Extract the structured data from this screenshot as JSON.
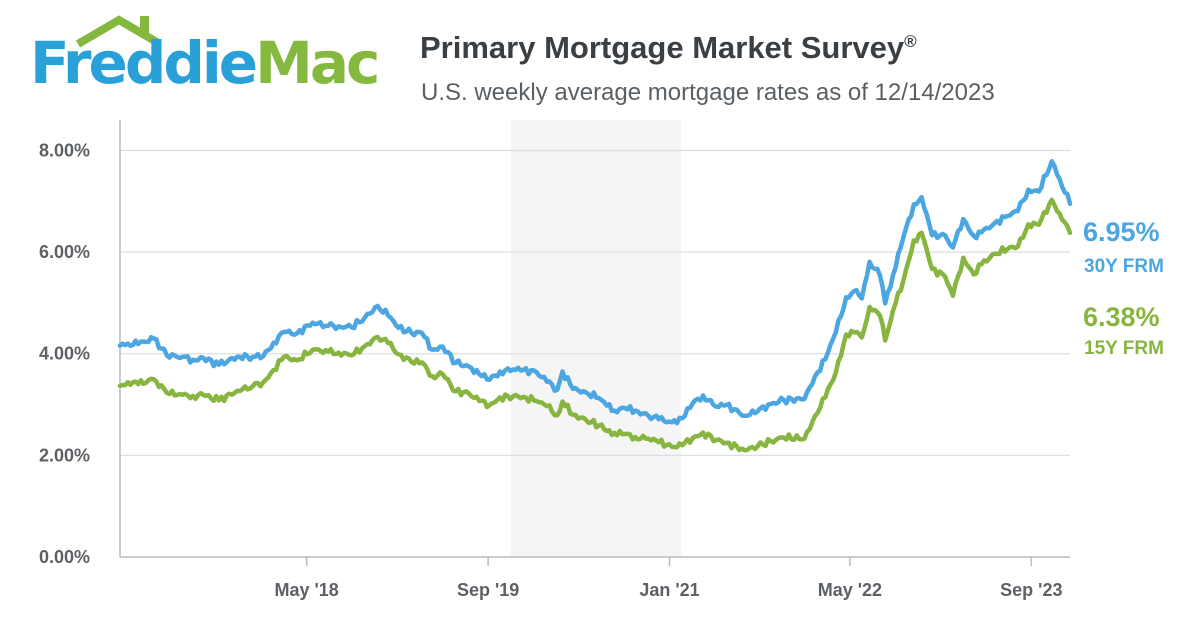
{
  "header": {
    "logo": {
      "name": "freddie-mac-logo",
      "text_part1": "Freddie",
      "text_part2": "Mac"
    },
    "title": "Primary Mortgage Market Survey",
    "title_mark": "®",
    "subtitle": "U.S. weekly average mortgage rates as of 12/14/2023"
  },
  "colors": {
    "series_30y": "#4ba6e1",
    "series_15y": "#87b540",
    "grid": "#dcdfe2",
    "axis": "#b8bcc0",
    "shade": "#f5f5f6"
  },
  "chart_data": {
    "type": "line",
    "title": "Primary Mortgage Market Survey",
    "subtitle": "U.S. weekly average mortgage rates as of 12/14/2023",
    "xlabel": "",
    "ylabel": "",
    "x_axis": {
      "type": "date",
      "range": [
        "2016-12-15",
        "2023-12-14"
      ],
      "tick_labels": [
        "May '18",
        "Sep '19",
        "Jan '21",
        "May '22",
        "Sep '23"
      ],
      "tick_dates": [
        "2018-05-01",
        "2019-09-01",
        "2021-01-01",
        "2022-05-01",
        "2023-09-01"
      ]
    },
    "y_axis": {
      "range": [
        0,
        8.6
      ],
      "ticks": [
        0,
        2,
        4,
        6,
        8
      ],
      "tick_labels": [
        "0.00%",
        "2.00%",
        "4.00%",
        "6.00%",
        "8.00%"
      ]
    },
    "grid": true,
    "legend": "right",
    "series": [
      {
        "name": "30Y FRM",
        "end_value_label": "6.95%",
        "end_label": "30Y FRM",
        "points": [
          [
            "2016-12-15",
            4.16
          ],
          [
            "2017-01-05",
            4.2
          ],
          [
            "2017-02-02",
            4.19
          ],
          [
            "2017-03-16",
            4.3
          ],
          [
            "2017-04-20",
            3.97
          ],
          [
            "2017-06-01",
            3.94
          ],
          [
            "2017-06-29",
            3.88
          ],
          [
            "2017-07-27",
            3.92
          ],
          [
            "2017-09-07",
            3.78
          ],
          [
            "2017-10-26",
            3.94
          ],
          [
            "2017-12-07",
            3.94
          ],
          [
            "2018-01-04",
            3.95
          ],
          [
            "2018-02-01",
            4.22
          ],
          [
            "2018-03-01",
            4.43
          ],
          [
            "2018-04-05",
            4.4
          ],
          [
            "2018-05-17",
            4.61
          ],
          [
            "2018-06-28",
            4.55
          ],
          [
            "2018-07-26",
            4.54
          ],
          [
            "2018-08-30",
            4.52
          ],
          [
            "2018-10-04",
            4.71
          ],
          [
            "2018-11-08",
            4.94
          ],
          [
            "2018-12-06",
            4.75
          ],
          [
            "2019-01-03",
            4.51
          ],
          [
            "2019-02-07",
            4.41
          ],
          [
            "2019-03-07",
            4.41
          ],
          [
            "2019-04-04",
            4.08
          ],
          [
            "2019-05-02",
            4.14
          ],
          [
            "2019-06-06",
            3.82
          ],
          [
            "2019-07-11",
            3.75
          ],
          [
            "2019-08-08",
            3.6
          ],
          [
            "2019-09-05",
            3.49
          ],
          [
            "2019-10-03",
            3.65
          ],
          [
            "2019-11-07",
            3.69
          ],
          [
            "2019-12-05",
            3.68
          ],
          [
            "2020-01-09",
            3.64
          ],
          [
            "2020-02-06",
            3.45
          ],
          [
            "2020-03-05",
            3.29
          ],
          [
            "2020-03-19",
            3.65
          ],
          [
            "2020-04-16",
            3.31
          ],
          [
            "2020-05-21",
            3.24
          ],
          [
            "2020-06-25",
            3.13
          ],
          [
            "2020-07-16",
            2.98
          ],
          [
            "2020-08-06",
            2.88
          ],
          [
            "2020-09-03",
            2.93
          ],
          [
            "2020-10-01",
            2.88
          ],
          [
            "2020-11-05",
            2.78
          ],
          [
            "2020-12-03",
            2.71
          ],
          [
            "2021-01-07",
            2.65
          ],
          [
            "2021-02-04",
            2.73
          ],
          [
            "2021-03-04",
            3.02
          ],
          [
            "2021-04-01",
            3.18
          ],
          [
            "2021-05-06",
            2.96
          ],
          [
            "2021-06-03",
            2.99
          ],
          [
            "2021-07-22",
            2.78
          ],
          [
            "2021-08-26",
            2.87
          ],
          [
            "2021-09-30",
            3.01
          ],
          [
            "2021-11-04",
            3.09
          ],
          [
            "2021-12-30",
            3.11
          ],
          [
            "2022-01-27",
            3.55
          ],
          [
            "2022-02-24",
            3.89
          ],
          [
            "2022-03-24",
            4.42
          ],
          [
            "2022-04-21",
            5.11
          ],
          [
            "2022-05-19",
            5.25
          ],
          [
            "2022-06-02",
            5.09
          ],
          [
            "2022-06-23",
            5.81
          ],
          [
            "2022-07-21",
            5.54
          ],
          [
            "2022-08-04",
            4.99
          ],
          [
            "2022-08-25",
            5.55
          ],
          [
            "2022-09-22",
            6.29
          ],
          [
            "2022-10-20",
            6.94
          ],
          [
            "2022-11-10",
            7.08
          ],
          [
            "2022-12-08",
            6.33
          ],
          [
            "2023-01-12",
            6.33
          ],
          [
            "2023-02-02",
            6.09
          ],
          [
            "2023-03-02",
            6.65
          ],
          [
            "2023-03-30",
            6.32
          ],
          [
            "2023-04-20",
            6.39
          ],
          [
            "2023-05-25",
            6.57
          ],
          [
            "2023-06-29",
            6.71
          ],
          [
            "2023-07-27",
            6.81
          ],
          [
            "2023-08-24",
            7.23
          ],
          [
            "2023-09-21",
            7.19
          ],
          [
            "2023-10-26",
            7.79
          ],
          [
            "2023-11-16",
            7.44
          ],
          [
            "2023-12-14",
            6.95
          ]
        ]
      },
      {
        "name": "15Y FRM",
        "end_value_label": "6.38%",
        "end_label": "15Y FRM",
        "points": [
          [
            "2016-12-15",
            3.37
          ],
          [
            "2017-01-05",
            3.44
          ],
          [
            "2017-02-02",
            3.4
          ],
          [
            "2017-03-16",
            3.5
          ],
          [
            "2017-04-20",
            3.23
          ],
          [
            "2017-06-01",
            3.19
          ],
          [
            "2017-06-29",
            3.17
          ],
          [
            "2017-07-27",
            3.19
          ],
          [
            "2017-09-07",
            3.08
          ],
          [
            "2017-10-26",
            3.27
          ],
          [
            "2017-12-07",
            3.36
          ],
          [
            "2018-01-04",
            3.44
          ],
          [
            "2018-02-01",
            3.68
          ],
          [
            "2018-03-01",
            3.94
          ],
          [
            "2018-04-05",
            3.87
          ],
          [
            "2018-05-17",
            4.08
          ],
          [
            "2018-06-28",
            4.04
          ],
          [
            "2018-07-26",
            4.02
          ],
          [
            "2018-08-30",
            3.97
          ],
          [
            "2018-10-04",
            4.15
          ],
          [
            "2018-11-08",
            4.33
          ],
          [
            "2018-12-06",
            4.21
          ],
          [
            "2019-01-03",
            3.99
          ],
          [
            "2019-02-07",
            3.84
          ],
          [
            "2019-03-07",
            3.83
          ],
          [
            "2019-04-04",
            3.56
          ],
          [
            "2019-05-02",
            3.6
          ],
          [
            "2019-06-06",
            3.26
          ],
          [
            "2019-07-11",
            3.22
          ],
          [
            "2019-08-08",
            3.07
          ],
          [
            "2019-09-05",
            2.99
          ],
          [
            "2019-10-03",
            3.14
          ],
          [
            "2019-11-07",
            3.16
          ],
          [
            "2019-12-05",
            3.15
          ],
          [
            "2020-01-09",
            3.07
          ],
          [
            "2020-02-06",
            2.97
          ],
          [
            "2020-03-05",
            2.79
          ],
          [
            "2020-03-19",
            3.06
          ],
          [
            "2020-04-16",
            2.8
          ],
          [
            "2020-05-21",
            2.7
          ],
          [
            "2020-06-25",
            2.59
          ],
          [
            "2020-07-16",
            2.48
          ],
          [
            "2020-08-06",
            2.44
          ],
          [
            "2020-09-03",
            2.42
          ],
          [
            "2020-10-01",
            2.36
          ],
          [
            "2020-11-05",
            2.33
          ],
          [
            "2020-12-03",
            2.26
          ],
          [
            "2021-01-07",
            2.17
          ],
          [
            "2021-02-04",
            2.2
          ],
          [
            "2021-03-04",
            2.34
          ],
          [
            "2021-04-01",
            2.45
          ],
          [
            "2021-05-06",
            2.3
          ],
          [
            "2021-06-03",
            2.25
          ],
          [
            "2021-07-22",
            2.1
          ],
          [
            "2021-08-26",
            2.18
          ],
          [
            "2021-09-30",
            2.28
          ],
          [
            "2021-11-04",
            2.35
          ],
          [
            "2021-12-30",
            2.33
          ],
          [
            "2022-01-27",
            2.77
          ],
          [
            "2022-02-24",
            3.14
          ],
          [
            "2022-03-24",
            3.63
          ],
          [
            "2022-04-21",
            4.38
          ],
          [
            "2022-05-19",
            4.43
          ],
          [
            "2022-06-02",
            4.32
          ],
          [
            "2022-06-23",
            4.92
          ],
          [
            "2022-07-21",
            4.75
          ],
          [
            "2022-08-04",
            4.26
          ],
          [
            "2022-08-25",
            4.85
          ],
          [
            "2022-09-22",
            5.44
          ],
          [
            "2022-10-20",
            6.23
          ],
          [
            "2022-11-10",
            6.38
          ],
          [
            "2022-12-08",
            5.67
          ],
          [
            "2023-01-12",
            5.52
          ],
          [
            "2023-02-02",
            5.14
          ],
          [
            "2023-03-02",
            5.89
          ],
          [
            "2023-03-30",
            5.56
          ],
          [
            "2023-04-20",
            5.76
          ],
          [
            "2023-05-25",
            5.97
          ],
          [
            "2023-06-29",
            6.06
          ],
          [
            "2023-07-27",
            6.11
          ],
          [
            "2023-08-24",
            6.55
          ],
          [
            "2023-09-21",
            6.54
          ],
          [
            "2023-10-26",
            7.03
          ],
          [
            "2023-11-16",
            6.76
          ],
          [
            "2023-12-14",
            6.38
          ]
        ]
      }
    ]
  }
}
